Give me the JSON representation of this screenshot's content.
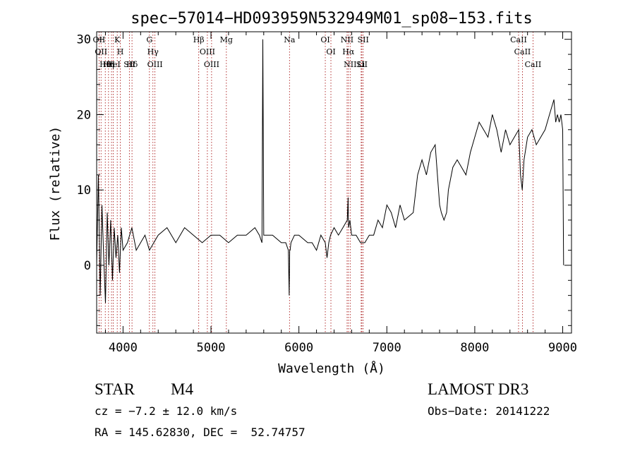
{
  "chart_data": {
    "type": "line",
    "title": "spec−57014−HD093959N532949M01_sp08−153.fits",
    "xlabel": "Wavelength (Å)",
    "ylabel": "Flux (relative)",
    "xlim": [
      3700,
      9100
    ],
    "ylim": [
      -9,
      31
    ],
    "xticks": [
      4000,
      5000,
      6000,
      7000,
      8000,
      9000
    ],
    "yticks": [
      0,
      10,
      20,
      30
    ],
    "grid": false,
    "series": [
      {
        "name": "flux",
        "x": [
          3700,
          3720,
          3740,
          3760,
          3780,
          3800,
          3820,
          3840,
          3860,
          3880,
          3900,
          3920,
          3940,
          3960,
          3980,
          4000,
          4050,
          4100,
          4150,
          4200,
          4250,
          4300,
          4350,
          4400,
          4500,
          4600,
          4700,
          4800,
          4900,
          5000,
          5100,
          5200,
          5300,
          5400,
          5500,
          5550,
          5580,
          5590,
          5600,
          5650,
          5700,
          5800,
          5850,
          5880,
          5890,
          5895,
          5900,
          5910,
          5950,
          6000,
          6100,
          6150,
          6200,
          6250,
          6300,
          6320,
          6340,
          6360,
          6400,
          6450,
          6500,
          6550,
          6560,
          6562,
          6565,
          6580,
          6600,
          6650,
          6700,
          6750,
          6800,
          6850,
          6900,
          6950,
          7000,
          7050,
          7100,
          7150,
          7200,
          7300,
          7350,
          7400,
          7450,
          7500,
          7550,
          7600,
          7620,
          7650,
          7680,
          7700,
          7750,
          7800,
          7850,
          7900,
          7950,
          8000,
          8050,
          8100,
          8150,
          8200,
          8250,
          8300,
          8350,
          8400,
          8450,
          8500,
          8520,
          8540,
          8560,
          8600,
          8650,
          8700,
          8750,
          8800,
          8850,
          8900,
          8920,
          8940,
          8960,
          8980,
          9000,
          9010
        ],
        "y": [
          0,
          12,
          -4,
          8,
          1,
          -5,
          7,
          0,
          6,
          -2,
          5,
          1,
          4,
          -1,
          5,
          2,
          3,
          5,
          2,
          3,
          4,
          2,
          3,
          4,
          5,
          3,
          5,
          4,
          3,
          4,
          4,
          3,
          4,
          4,
          5,
          4,
          3,
          30,
          4,
          4,
          4,
          3,
          3,
          2,
          -4,
          2,
          2,
          3,
          4,
          4,
          3,
          3,
          2,
          4,
          3,
          1,
          3,
          4,
          5,
          4,
          5,
          6,
          9,
          6,
          5,
          6,
          4,
          4,
          3,
          3,
          4,
          4,
          6,
          5,
          8,
          7,
          5,
          8,
          6,
          7,
          12,
          14,
          12,
          15,
          16,
          8,
          7,
          6,
          7,
          10,
          13,
          14,
          13,
          12,
          15,
          17,
          19,
          18,
          17,
          20,
          18,
          15,
          18,
          16,
          17,
          18,
          12,
          10,
          14,
          17,
          18,
          16,
          17,
          18,
          20,
          22,
          19,
          20,
          19,
          20,
          18,
          0
        ]
      }
    ],
    "lines": [
      {
        "x": 3727,
        "label": "OII"
      },
      {
        "x": 3750,
        "label": "OII"
      },
      {
        "x": 3798,
        "label": "Hθ"
      },
      {
        "x": 3835,
        "label": "Hη"
      },
      {
        "x": 3869,
        "label": "H"
      },
      {
        "x": 3889,
        "label": "HeI"
      },
      {
        "x": 3934,
        "label": "K"
      },
      {
        "x": 3969,
        "label": "H"
      },
      {
        "x": 4072,
        "label": "SII"
      },
      {
        "x": 4102,
        "label": "Hδ"
      },
      {
        "x": 4300,
        "label": "G"
      },
      {
        "x": 4340,
        "label": "Hγ"
      },
      {
        "x": 4363,
        "label": "OIII"
      },
      {
        "x": 4861,
        "label": "Hβ"
      },
      {
        "x": 4959,
        "label": "OIII"
      },
      {
        "x": 5007,
        "label": "OIII"
      },
      {
        "x": 5175,
        "label": "Mg"
      },
      {
        "x": 5893,
        "label": "Na"
      },
      {
        "x": 6300,
        "label": "OI"
      },
      {
        "x": 6364,
        "label": "OI"
      },
      {
        "x": 6548,
        "label": "NII"
      },
      {
        "x": 6563,
        "label": "Hα"
      },
      {
        "x": 6583,
        "label": "NII"
      },
      {
        "x": 6708,
        "label": "Li"
      },
      {
        "x": 6716,
        "label": "SII"
      },
      {
        "x": 6731,
        "label": "SII"
      },
      {
        "x": 8498,
        "label": "CaII"
      },
      {
        "x": 8542,
        "label": "CaII"
      },
      {
        "x": 8662,
        "label": "CaII"
      }
    ]
  },
  "info": {
    "object_class": "STAR",
    "subclass": "M4",
    "survey": "LAMOST DR3",
    "cz": "cz = −7.2 ± 12.0 km/s",
    "obs_date": "Obs−Date: 20141222",
    "radec": "RA = 145.62830, DEC =  52.74757"
  }
}
